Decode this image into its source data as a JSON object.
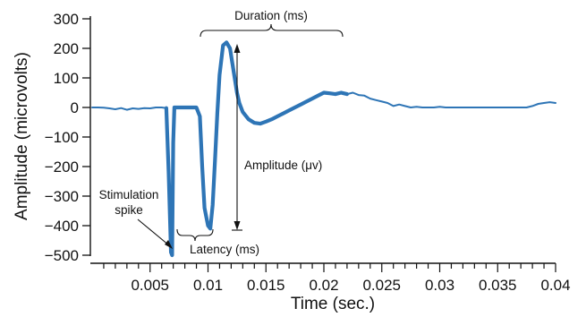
{
  "chart_data": {
    "type": "line",
    "title": "",
    "xlabel": "Time (sec.)",
    "ylabel": "Amplitude (microvolts)",
    "xlim": [
      0,
      0.04
    ],
    "ylim": [
      -500,
      300
    ],
    "xticks": [
      0.005,
      0.01,
      0.015,
      0.02,
      0.025,
      0.03,
      0.035,
      0.04
    ],
    "xtick_labels": [
      "0.005",
      "0.01",
      "0.015",
      "0.02",
      "0.025",
      "0.03",
      "0.035",
      "0.04"
    ],
    "yticks": [
      300,
      200,
      100,
      0,
      -100,
      -200,
      -300,
      -400,
      -500
    ],
    "ytick_labels": [
      "300",
      "200",
      "100",
      "0",
      "−100",
      "−200",
      "−300",
      "−400",
      "−500"
    ],
    "grid": false,
    "line_color": "#2e75b6",
    "series": [
      {
        "x": [
          0,
          0.0005,
          0.001,
          0.0015,
          0.002,
          0.0025,
          0.003,
          0.0035,
          0.004,
          0.0045,
          0.005,
          0.0055,
          0.006,
          0.0064,
          0.0066,
          0.0068,
          0.0069,
          0.007,
          0.0071,
          0.0072,
          0.0074,
          0.0077,
          0.008,
          0.0085,
          0.009,
          0.0093,
          0.0095,
          0.0097,
          0.01,
          0.0102,
          0.0104,
          0.0106,
          0.0108,
          0.011,
          0.0113,
          0.0116,
          0.0119,
          0.0121,
          0.0123,
          0.0125,
          0.0127,
          0.013,
          0.0135,
          0.014,
          0.0145,
          0.015,
          0.0155,
          0.016,
          0.0165,
          0.017,
          0.0175,
          0.018,
          0.0185,
          0.019,
          0.0195,
          0.02,
          0.0205,
          0.021,
          0.0215,
          0.022,
          0.0225,
          0.023,
          0.0235,
          0.024,
          0.0245,
          0.025,
          0.0255,
          0.026,
          0.0265,
          0.027,
          0.0275,
          0.028,
          0.0285,
          0.029,
          0.0295,
          0.03,
          0.0305,
          0.031,
          0.0315,
          0.032,
          0.0325,
          0.033,
          0.0335,
          0.034,
          0.0345,
          0.035,
          0.0355,
          0.036,
          0.0365,
          0.037,
          0.0375,
          0.038,
          0.0385,
          0.039,
          0.0395,
          0.04
        ],
        "y": [
          0,
          0,
          -1,
          -3,
          -6,
          -2,
          -8,
          -3,
          -5,
          -2,
          -3,
          0,
          0,
          -2,
          -220,
          -490,
          -500,
          -120,
          0,
          0,
          0,
          0,
          0,
          0,
          0,
          -30,
          -200,
          -340,
          -400,
          -410,
          -330,
          -180,
          -20,
          110,
          210,
          220,
          200,
          150,
          100,
          50,
          15,
          -15,
          -40,
          -52,
          -55,
          -48,
          -40,
          -30,
          -20,
          -10,
          0,
          10,
          20,
          30,
          40,
          50,
          48,
          45,
          50,
          45,
          50,
          42,
          40,
          30,
          25,
          20,
          15,
          5,
          10,
          5,
          0,
          2,
          0,
          0,
          0,
          2,
          0,
          0,
          0,
          0,
          0,
          0,
          0,
          0,
          0,
          0,
          0,
          0,
          0,
          0,
          0,
          5,
          12,
          15,
          18,
          15
        ]
      }
    ],
    "annotations": {
      "duration": "Duration (ms)",
      "amplitude": "Amplitude (μv)",
      "latency": "Latency (ms)",
      "stimulation_line1": "Stimulation",
      "stimulation_line2": "spike"
    }
  }
}
